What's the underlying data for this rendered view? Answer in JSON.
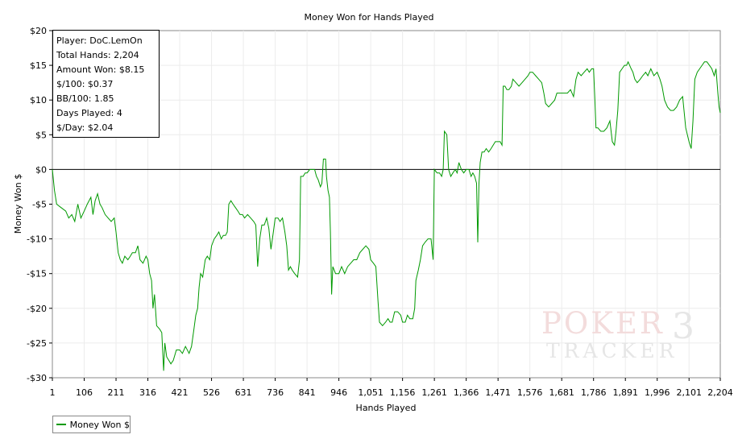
{
  "chart_data": {
    "type": "line",
    "title": "Money Won for Hands Played",
    "xlabel": "Hands Played",
    "ylabel": "Money Won $",
    "xlim": [
      1,
      2204
    ],
    "ylim": [
      -30,
      20
    ],
    "x_ticks": [
      1,
      106,
      211,
      316,
      421,
      526,
      631,
      736,
      841,
      946,
      1051,
      1156,
      1261,
      1366,
      1471,
      1576,
      1681,
      1786,
      1891,
      1996,
      2101,
      2204
    ],
    "x_tick_labels": [
      "1",
      "106",
      "211",
      "316",
      "421",
      "526",
      "631",
      "736",
      "841",
      "946",
      "1,051",
      "1,156",
      "1,261",
      "1,366",
      "1,471",
      "1,576",
      "1,681",
      "1,786",
      "1,891",
      "1,996",
      "2,101",
      "2,204"
    ],
    "y_ticks": [
      20,
      15,
      10,
      5,
      0,
      -5,
      -10,
      -15,
      -20,
      -25,
      -30
    ],
    "y_tick_labels": [
      "$20",
      "$15",
      "$10",
      "$5",
      "$0",
      "-$5",
      "-$10",
      "-$15",
      "-$20",
      "-$25",
      "-$30"
    ],
    "grid": true,
    "legend_position": "bottom-left",
    "series": [
      {
        "name": "Money Won $",
        "color": "#009900",
        "points": [
          [
            1,
            0
          ],
          [
            8,
            -3
          ],
          [
            15,
            -5
          ],
          [
            30,
            -5.5
          ],
          [
            45,
            -6
          ],
          [
            55,
            -7
          ],
          [
            65,
            -6.5
          ],
          [
            75,
            -7.5
          ],
          [
            85,
            -5
          ],
          [
            95,
            -7
          ],
          [
            106,
            -6
          ],
          [
            116,
            -5
          ],
          [
            128,
            -4
          ],
          [
            135,
            -6.5
          ],
          [
            142,
            -4.5
          ],
          [
            150,
            -3.5
          ],
          [
            158,
            -5
          ],
          [
            165,
            -5.5
          ],
          [
            175,
            -6.5
          ],
          [
            185,
            -7
          ],
          [
            195,
            -7.5
          ],
          [
            205,
            -7
          ],
          [
            211,
            -9
          ],
          [
            218,
            -12
          ],
          [
            225,
            -13
          ],
          [
            232,
            -13.5
          ],
          [
            240,
            -12.5
          ],
          [
            250,
            -13
          ],
          [
            258,
            -12.5
          ],
          [
            265,
            -12
          ],
          [
            275,
            -12
          ],
          [
            283,
            -11
          ],
          [
            290,
            -13
          ],
          [
            300,
            -13.5
          ],
          [
            310,
            -12.5
          ],
          [
            316,
            -13
          ],
          [
            322,
            -15
          ],
          [
            328,
            -16
          ],
          [
            333,
            -20
          ],
          [
            338,
            -18
          ],
          [
            345,
            -22.5
          ],
          [
            355,
            -23
          ],
          [
            362,
            -23.5
          ],
          [
            368,
            -29
          ],
          [
            372,
            -25
          ],
          [
            378,
            -27
          ],
          [
            385,
            -27.5
          ],
          [
            392,
            -28
          ],
          [
            400,
            -27.5
          ],
          [
            410,
            -26
          ],
          [
            421,
            -26
          ],
          [
            430,
            -26.5
          ],
          [
            440,
            -25.5
          ],
          [
            452,
            -26.5
          ],
          [
            460,
            -25.5
          ],
          [
            468,
            -23
          ],
          [
            474,
            -21
          ],
          [
            480,
            -20
          ],
          [
            485,
            -17
          ],
          [
            490,
            -15
          ],
          [
            497,
            -15.5
          ],
          [
            505,
            -13
          ],
          [
            512,
            -12.5
          ],
          [
            520,
            -13
          ],
          [
            526,
            -11
          ],
          [
            535,
            -10
          ],
          [
            543,
            -9.5
          ],
          [
            550,
            -9
          ],
          [
            558,
            -10
          ],
          [
            565,
            -9.5
          ],
          [
            572,
            -9.5
          ],
          [
            578,
            -9
          ],
          [
            583,
            -5
          ],
          [
            590,
            -4.5
          ],
          [
            597,
            -5
          ],
          [
            605,
            -5.5
          ],
          [
            613,
            -6
          ],
          [
            620,
            -6.5
          ],
          [
            628,
            -6.5
          ],
          [
            635,
            -7
          ],
          [
            645,
            -6.5
          ],
          [
            655,
            -7
          ],
          [
            665,
            -7.5
          ],
          [
            672,
            -8
          ],
          [
            678,
            -14
          ],
          [
            685,
            -10
          ],
          [
            692,
            -8
          ],
          [
            700,
            -8
          ],
          [
            708,
            -7
          ],
          [
            715,
            -8.5
          ],
          [
            722,
            -11.5
          ],
          [
            730,
            -9
          ],
          [
            736,
            -7
          ],
          [
            745,
            -7
          ],
          [
            752,
            -7.5
          ],
          [
            760,
            -7
          ],
          [
            768,
            -9
          ],
          [
            774,
            -11
          ],
          [
            780,
            -14.5
          ],
          [
            786,
            -14
          ],
          [
            792,
            -14.5
          ],
          [
            800,
            -15
          ],
          [
            810,
            -15.5
          ],
          [
            816,
            -13
          ],
          [
            820,
            -1
          ],
          [
            828,
            -1
          ],
          [
            835,
            -0.5
          ],
          [
            841,
            -0.5
          ],
          [
            850,
            0
          ],
          [
            858,
            0
          ],
          [
            866,
            0
          ],
          [
            872,
            -1
          ],
          [
            878,
            -1.5
          ],
          [
            885,
            -2.5
          ],
          [
            890,
            -2
          ],
          [
            895,
            1.5
          ],
          [
            902,
            1.5
          ],
          [
            905,
            -1
          ],
          [
            910,
            -3
          ],
          [
            915,
            -4
          ],
          [
            918,
            -9
          ],
          [
            922,
            -18
          ],
          [
            926,
            -14
          ],
          [
            935,
            -15
          ],
          [
            946,
            -15
          ],
          [
            955,
            -14
          ],
          [
            965,
            -15
          ],
          [
            975,
            -14
          ],
          [
            985,
            -13.5
          ],
          [
            995,
            -13
          ],
          [
            1005,
            -13
          ],
          [
            1015,
            -12
          ],
          [
            1025,
            -11.5
          ],
          [
            1035,
            -11
          ],
          [
            1045,
            -11.5
          ],
          [
            1051,
            -13
          ],
          [
            1060,
            -13.5
          ],
          [
            1068,
            -14
          ],
          [
            1075,
            -19
          ],
          [
            1080,
            -22
          ],
          [
            1090,
            -22.5
          ],
          [
            1100,
            -22
          ],
          [
            1108,
            -21.5
          ],
          [
            1115,
            -22
          ],
          [
            1122,
            -22
          ],
          [
            1130,
            -20.5
          ],
          [
            1140,
            -20.5
          ],
          [
            1150,
            -21
          ],
          [
            1156,
            -22
          ],
          [
            1165,
            -22
          ],
          [
            1172,
            -21
          ],
          [
            1180,
            -21.5
          ],
          [
            1190,
            -21.5
          ],
          [
            1196,
            -20
          ],
          [
            1200,
            -16
          ],
          [
            1208,
            -14.5
          ],
          [
            1215,
            -13
          ],
          [
            1222,
            -11
          ],
          [
            1230,
            -10.5
          ],
          [
            1240,
            -10
          ],
          [
            1250,
            -10
          ],
          [
            1257,
            -13
          ],
          [
            1261,
            0
          ],
          [
            1270,
            -0.5
          ],
          [
            1278,
            -0.5
          ],
          [
            1285,
            -1
          ],
          [
            1290,
            0
          ],
          [
            1294,
            5.5
          ],
          [
            1302,
            5
          ],
          [
            1308,
            0
          ],
          [
            1315,
            -1
          ],
          [
            1322,
            -0.5
          ],
          [
            1330,
            0
          ],
          [
            1336,
            -0.5
          ],
          [
            1342,
            1
          ],
          [
            1350,
            0
          ],
          [
            1358,
            -0.5
          ],
          [
            1366,
            0
          ],
          [
            1375,
            0
          ],
          [
            1382,
            -1
          ],
          [
            1388,
            -0.5
          ],
          [
            1394,
            -1
          ],
          [
            1400,
            -2
          ],
          [
            1404,
            -10.5
          ],
          [
            1408,
            -2
          ],
          [
            1412,
            1
          ],
          [
            1418,
            2.5
          ],
          [
            1425,
            2.5
          ],
          [
            1432,
            3
          ],
          [
            1440,
            2.5
          ],
          [
            1448,
            3
          ],
          [
            1455,
            3.5
          ],
          [
            1462,
            4
          ],
          [
            1471,
            4
          ],
          [
            1478,
            4
          ],
          [
            1484,
            3.5
          ],
          [
            1488,
            12
          ],
          [
            1494,
            12
          ],
          [
            1500,
            11.5
          ],
          [
            1507,
            11.5
          ],
          [
            1515,
            12
          ],
          [
            1520,
            13
          ],
          [
            1530,
            12.5
          ],
          [
            1540,
            12
          ],
          [
            1550,
            12.5
          ],
          [
            1560,
            13
          ],
          [
            1570,
            13.5
          ],
          [
            1576,
            14
          ],
          [
            1585,
            14
          ],
          [
            1595,
            13.5
          ],
          [
            1605,
            13
          ],
          [
            1615,
            12.5
          ],
          [
            1622,
            11
          ],
          [
            1628,
            9.5
          ],
          [
            1638,
            9
          ],
          [
            1648,
            9.5
          ],
          [
            1658,
            10
          ],
          [
            1665,
            11
          ],
          [
            1675,
            11
          ],
          [
            1681,
            11
          ],
          [
            1690,
            11
          ],
          [
            1700,
            11
          ],
          [
            1710,
            11.5
          ],
          [
            1720,
            10.5
          ],
          [
            1728,
            13
          ],
          [
            1735,
            14
          ],
          [
            1745,
            13.5
          ],
          [
            1755,
            14
          ],
          [
            1765,
            14.5
          ],
          [
            1772,
            14
          ],
          [
            1780,
            14.5
          ],
          [
            1786,
            14.5
          ],
          [
            1790,
            10.5
          ],
          [
            1794,
            6
          ],
          [
            1800,
            6
          ],
          [
            1810,
            5.5
          ],
          [
            1820,
            5.5
          ],
          [
            1830,
            6
          ],
          [
            1840,
            7
          ],
          [
            1848,
            4
          ],
          [
            1855,
            3.5
          ],
          [
            1860,
            5.5
          ],
          [
            1866,
            8.5
          ],
          [
            1872,
            14
          ],
          [
            1880,
            14.5
          ],
          [
            1888,
            15
          ],
          [
            1895,
            15
          ],
          [
            1900,
            15.5
          ],
          [
            1905,
            15
          ],
          [
            1910,
            14.5
          ],
          [
            1916,
            14
          ],
          [
            1922,
            13
          ],
          [
            1930,
            12.5
          ],
          [
            1940,
            13
          ],
          [
            1948,
            13.5
          ],
          [
            1958,
            14
          ],
          [
            1965,
            13.5
          ],
          [
            1975,
            14.5
          ],
          [
            1985,
            13.5
          ],
          [
            1996,
            14
          ],
          [
            2005,
            13
          ],
          [
            2012,
            12
          ],
          [
            2020,
            10
          ],
          [
            2030,
            9
          ],
          [
            2040,
            8.5
          ],
          [
            2050,
            8.5
          ],
          [
            2060,
            9
          ],
          [
            2070,
            10
          ],
          [
            2080,
            10.5
          ],
          [
            2090,
            6
          ],
          [
            2101,
            4
          ],
          [
            2108,
            3
          ],
          [
            2114,
            7
          ],
          [
            2120,
            13
          ],
          [
            2128,
            14
          ],
          [
            2136,
            14.5
          ],
          [
            2144,
            15
          ],
          [
            2152,
            15.5
          ],
          [
            2160,
            15.5
          ],
          [
            2168,
            15
          ],
          [
            2176,
            14.5
          ],
          [
            2184,
            13.5
          ],
          [
            2190,
            14.5
          ],
          [
            2196,
            11
          ],
          [
            2200,
            9
          ],
          [
            2204,
            8.15
          ]
        ]
      }
    ]
  },
  "stats_box": {
    "lines": [
      "Player: DoC.LemOn",
      "Total Hands: 2,204",
      "Amount Won: $8.15",
      "$/100: $0.37",
      "BB/100: 1.85",
      "Days Played: 4",
      "$/Day: $2.04"
    ]
  },
  "legend": {
    "label": "Money Won $",
    "color": "#009900"
  },
  "watermark": {
    "top": "POKER",
    "bottom": "TRACKER",
    "digit": "3"
  }
}
